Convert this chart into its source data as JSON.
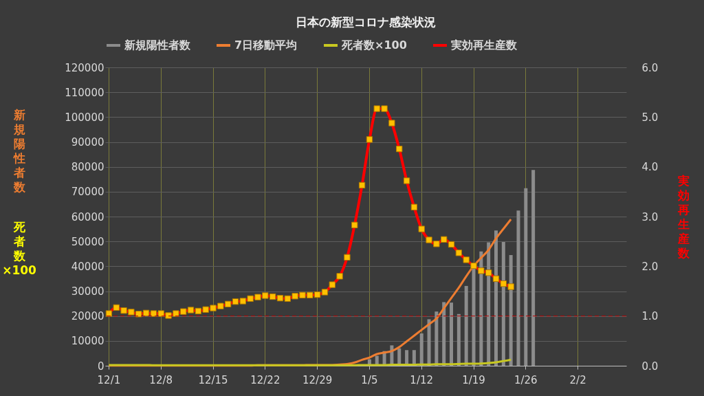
{
  "chart_data": {
    "type": "bar",
    "title": "日本の新型コロナ感染状況",
    "categories": [
      "12/1",
      null,
      null,
      null,
      null,
      null,
      null,
      "12/8",
      null,
      null,
      null,
      null,
      null,
      null,
      "12/15",
      null,
      null,
      null,
      null,
      null,
      null,
      "12/22",
      null,
      null,
      null,
      null,
      null,
      null,
      "12/29",
      null,
      null,
      null,
      null,
      null,
      null,
      "1/5",
      null,
      null,
      null,
      null,
      null,
      null,
      "1/12",
      null,
      null,
      null,
      null,
      null,
      null,
      "1/19",
      null,
      null,
      null,
      null,
      null,
      null,
      "1/26",
      null,
      null,
      null,
      null,
      null,
      null,
      "2/2",
      null,
      null,
      null,
      null,
      null,
      null
    ],
    "series": [
      {
        "name": "新規陽性者数",
        "color": "#8c8c8c",
        "values": [
          null,
          null,
          null,
          null,
          null,
          null,
          null,
          null,
          null,
          null,
          null,
          null,
          null,
          null,
          null,
          null,
          null,
          null,
          null,
          null,
          null,
          null,
          null,
          null,
          null,
          null,
          null,
          null,
          null,
          null,
          null,
          null,
          null,
          null,
          null,
          2600,
          4000,
          5900,
          8200,
          7000,
          6300,
          6300,
          13000,
          18700,
          21800,
          25600,
          25400,
          20800,
          32100,
          39000,
          46000,
          49600,
          54400,
          49800,
          44500,
          62400,
          71400,
          78700,
          null,
          null,
          null,
          null,
          null,
          null,
          null,
          null,
          null,
          null,
          null,
          null
        ]
      },
      {
        "name": "7日移動平均",
        "type": "line",
        "color": "#ed7d31",
        "values": [
          100,
          100,
          100,
          100,
          100,
          100,
          100,
          100,
          100,
          100,
          100,
          100,
          100,
          100,
          100,
          100,
          100,
          100,
          100,
          100,
          200,
          200,
          200,
          200,
          200,
          200,
          200,
          300,
          300,
          300,
          300,
          500,
          700,
          1300,
          2400,
          3300,
          4700,
          5300,
          5900,
          7500,
          9800,
          12100,
          14400,
          16700,
          19000,
          23100,
          27300,
          31400,
          36000,
          40200,
          43400,
          46600,
          51200,
          55100,
          58900,
          null,
          null,
          null,
          null,
          null,
          null,
          null,
          null,
          null,
          null,
          null,
          null,
          null,
          null,
          null
        ]
      },
      {
        "name": "死者数×100",
        "type": "line",
        "color": "#c8c820",
        "values": [
          300,
          300,
          300,
          300,
          300,
          300,
          200,
          200,
          200,
          200,
          200,
          200,
          200,
          200,
          200,
          200,
          200,
          200,
          200,
          200,
          200,
          200,
          200,
          200,
          200,
          200,
          200,
          200,
          200,
          200,
          200,
          200,
          200,
          200,
          300,
          300,
          300,
          300,
          400,
          400,
          400,
          400,
          500,
          500,
          600,
          600,
          600,
          700,
          800,
          800,
          900,
          1100,
          1400,
          1900,
          2400,
          null,
          null,
          null,
          null,
          null,
          null,
          null,
          null,
          null,
          null,
          null,
          null,
          null,
          null,
          null
        ]
      },
      {
        "name": "実効再生産数",
        "type": "line",
        "axis": "y2",
        "marker": "square",
        "color": "#ff0000",
        "values": [
          1.05,
          1.17,
          1.11,
          1.08,
          1.04,
          1.06,
          1.05,
          1.05,
          1.01,
          1.05,
          1.09,
          1.12,
          1.1,
          1.13,
          1.16,
          1.2,
          1.24,
          1.29,
          1.3,
          1.35,
          1.38,
          1.41,
          1.39,
          1.36,
          1.35,
          1.4,
          1.42,
          1.42,
          1.43,
          1.48,
          1.63,
          1.8,
          2.18,
          2.83,
          3.63,
          4.55,
          5.17,
          5.17,
          4.88,
          4.36,
          3.72,
          3.19,
          2.75,
          2.53,
          2.45,
          2.54,
          2.44,
          2.27,
          2.13,
          2.01,
          1.91,
          1.87,
          1.75,
          1.65,
          1.59,
          null,
          null,
          null,
          null,
          null,
          null,
          null,
          null,
          null,
          null,
          null,
          null,
          null,
          null,
          null
        ]
      }
    ],
    "ylim": [
      0,
      120000
    ],
    "yticks": [
      0,
      10000,
      20000,
      30000,
      40000,
      50000,
      60000,
      70000,
      80000,
      90000,
      100000,
      110000,
      120000
    ],
    "y2lim": [
      0,
      6
    ],
    "y2ticks": [
      {
        "value": 0,
        "label": "0.0"
      },
      {
        "value": 1,
        "label": "1.0"
      },
      {
        "value": 2,
        "label": "2.0"
      },
      {
        "value": 3,
        "label": "3.0"
      },
      {
        "value": 4,
        "label": "4.0"
      },
      {
        "value": 5,
        "label": "5.0"
      },
      {
        "value": 6,
        "label": "6.0"
      }
    ],
    "ylabel": "新規陽性者数",
    "y2label": "実効再生産数",
    "annotations": [
      "死者数×100"
    ],
    "ref_lines": [
      {
        "axis": "y2",
        "value": 1,
        "color": "#c00000",
        "line_style": "dashed"
      }
    ],
    "grid": true,
    "legend": "top"
  }
}
